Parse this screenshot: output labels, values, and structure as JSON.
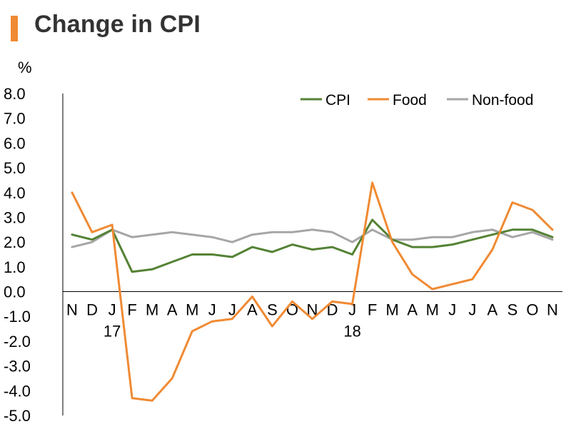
{
  "title": "Change in CPI",
  "chart_data": {
    "type": "line",
    "title": "Change in CPI",
    "ylabel": "%",
    "xlabel": "",
    "ylim": [
      -5.0,
      8.0
    ],
    "ytick_step": 1.0,
    "categories": [
      "N",
      "D",
      "J",
      "F",
      "M",
      "A",
      "M",
      "J",
      "J",
      "A",
      "S",
      "O",
      "N",
      "D",
      "J",
      "F",
      "M",
      "A",
      "M",
      "J",
      "J",
      "A",
      "S",
      "O",
      "N"
    ],
    "year_labels": [
      {
        "index": 2,
        "label": "17"
      },
      {
        "index": 14,
        "label": "18"
      }
    ],
    "legend_position": "top-right",
    "grid": false,
    "series": [
      {
        "name": "CPI",
        "color": "#548235",
        "values": [
          2.3,
          2.1,
          2.5,
          0.8,
          0.9,
          1.2,
          1.5,
          1.5,
          1.4,
          1.8,
          1.6,
          1.9,
          1.7,
          1.8,
          1.5,
          2.9,
          2.1,
          1.8,
          1.8,
          1.9,
          2.1,
          2.3,
          2.5,
          2.5,
          2.2
        ]
      },
      {
        "name": "Food",
        "color": "#F08A33",
        "values": [
          4.0,
          2.4,
          2.7,
          -4.3,
          -4.4,
          -3.5,
          -1.6,
          -1.2,
          -1.1,
          -0.2,
          -1.4,
          -0.4,
          -1.1,
          -0.4,
          -0.5,
          4.4,
          2.0,
          0.7,
          0.1,
          0.3,
          0.5,
          1.7,
          3.6,
          3.3,
          2.5
        ]
      },
      {
        "name": "Non-food",
        "color": "#A6A6A6",
        "values": [
          1.8,
          2.0,
          2.5,
          2.2,
          2.3,
          2.4,
          2.3,
          2.2,
          2.0,
          2.3,
          2.4,
          2.4,
          2.5,
          2.4,
          2.0,
          2.5,
          2.1,
          2.1,
          2.2,
          2.2,
          2.4,
          2.5,
          2.2,
          2.4,
          2.1
        ]
      }
    ]
  }
}
